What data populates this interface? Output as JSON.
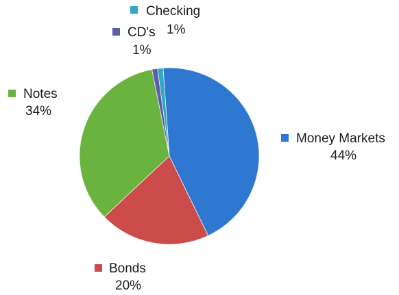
{
  "chart_data": {
    "type": "pie",
    "title": "",
    "legend": "none",
    "slices": [
      {
        "label": "Money Markets",
        "value": 44,
        "value_label": "44%",
        "color": "#2e78d2"
      },
      {
        "label": "Bonds",
        "value": 20,
        "value_label": "20%",
        "color": "#cc4b4b"
      },
      {
        "label": "Notes",
        "value": 34,
        "value_label": "34%",
        "color": "#6ab33f"
      },
      {
        "label": "CD's",
        "value": 1,
        "value_label": "1%",
        "color": "#5b5ea8"
      },
      {
        "label": "Checking",
        "value": 1,
        "value_label": "1%",
        "color": "#2eaac4"
      }
    ]
  }
}
